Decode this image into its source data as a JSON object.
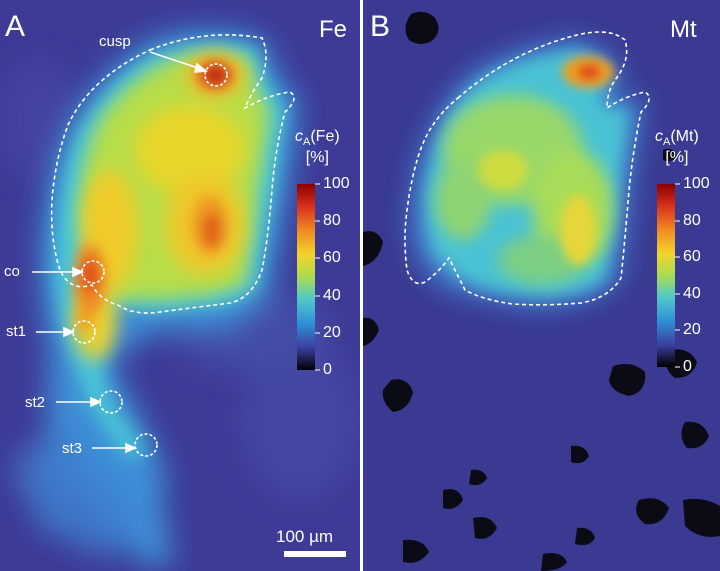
{
  "panel_a": {
    "letter": "A",
    "element": "Fe",
    "colorbar_title_prefix": "c",
    "colorbar_title_sub": "A",
    "colorbar_title_suffix": "(Fe)",
    "colorbar_unit": "[%]",
    "ticks": [
      "100",
      "80",
      "60",
      "40",
      "20",
      "0"
    ],
    "labels": {
      "cusp": "cusp",
      "co": "co",
      "st1": "st1",
      "st2": "st2",
      "st3": "st3"
    },
    "scale_bar": "100 µm"
  },
  "panel_b": {
    "letter": "B",
    "element": "Mt",
    "colorbar_title_prefix": "c",
    "colorbar_title_sub": "A",
    "colorbar_title_suffix": "(Mt)",
    "colorbar_unit": "[%]",
    "ticks": [
      "100",
      "80",
      "60",
      "40",
      "20",
      "0"
    ]
  },
  "colors": {
    "background": "#3d3b96",
    "divider": "#ffffff",
    "colormap": [
      "#000000",
      "#3a2f88",
      "#3d52b8",
      "#2f8fd6",
      "#3fc3d8",
      "#7bd37a",
      "#cfe23a",
      "#f0d22a",
      "#f4a322",
      "#e0501c",
      "#8b0000"
    ]
  }
}
